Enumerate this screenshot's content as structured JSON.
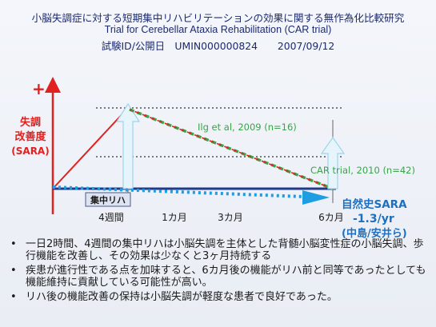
{
  "header": {
    "title_ja": "小脳失調症に対する短期集中リハビリテーションの効果に関する無作為化比較研究",
    "title_en": "Trial for Cerebellar Ataxia Rehabilitation (CAR trial)",
    "registry": "試験ID/公開日　UMIN000000824　　2007/09/12"
  },
  "diagram": {
    "y_axis_plus": "+",
    "y_axis_label_line1": "失調",
    "y_axis_label_line2": "改善度",
    "y_axis_label_line3": "(SARA)",
    "rehab_box": "集中リハ",
    "ilg_label": "Ilg et al, 2009 (n=16)",
    "car_label": "CAR trial, 2010  (n=42)",
    "natural_history_line1": "自然史SARA",
    "natural_history_line2": "-1.3/yr",
    "natural_history_line3": "(中島/安井ら)",
    "time_labels": [
      "4週間",
      "1カ月",
      "3カ月",
      "6カ月"
    ],
    "colors": {
      "axis_red": "#e0211f",
      "green_dash": "#3aa34a",
      "blue_dash": "#1e9ee0",
      "navy": "#1f3a8a",
      "arrow_fill": "#e6f5fb",
      "arrow_stroke": "#9fd4ea"
    }
  },
  "bullets": [
    "一日2時間、4週間の集中リハは小脳失調を主体とした背髄小脳変性症の小脳失調、歩行機能を改善し、その効果は少なくと3ヶ月持続する",
    "疾患が進行性である点を加味すると、6カ月後の機能がリハ前と同等であったとしても機能維持に貢献している可能性が高い。",
    "リハ後の機能改善の保持は小脳失調が軽度な患者で良好であった。"
  ]
}
